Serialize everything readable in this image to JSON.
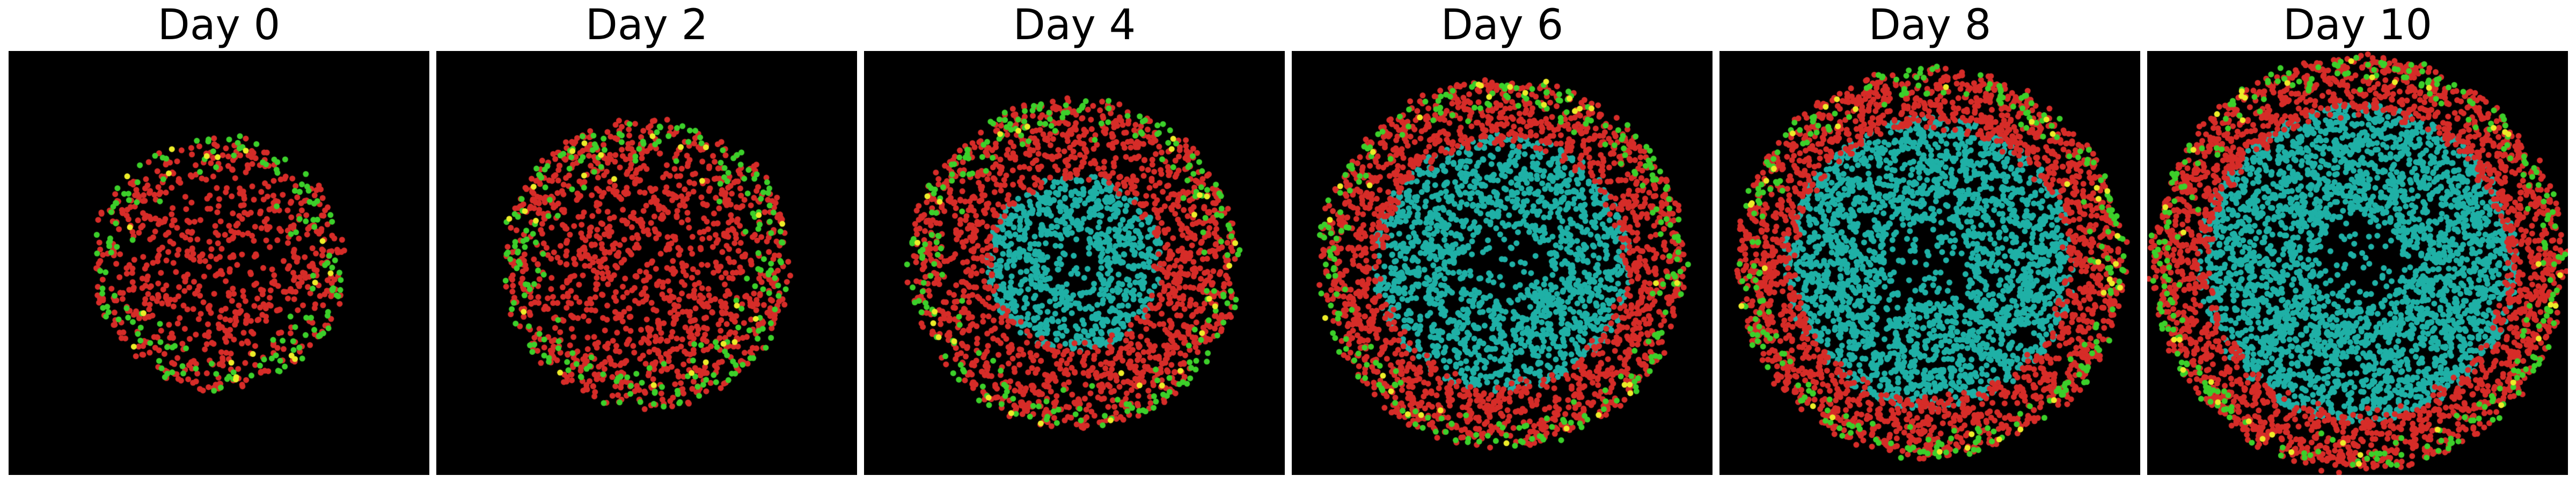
{
  "panels": [
    {
      "title": "Day 0",
      "cell_counts": {
        "necrotic": 0,
        "proliferating": 720,
        "g1": 150,
        "g2": 18
      },
      "core_fraction": 0.0,
      "radius": 0.6
    },
    {
      "title": "Day 2",
      "cell_counts": {
        "necrotic": 0,
        "proliferating": 1250,
        "g1": 220,
        "g2": 24
      },
      "core_fraction": 0.0,
      "radius": 0.69
    },
    {
      "title": "Day 4",
      "cell_counts": {
        "necrotic": 900,
        "proliferating": 1500,
        "g1": 230,
        "g2": 28
      },
      "core_fraction": 0.55,
      "radius": 0.78
    },
    {
      "title": "Day 6",
      "cell_counts": {
        "necrotic": 1700,
        "proliferating": 1700,
        "g1": 240,
        "g2": 30
      },
      "core_fraction": 0.72,
      "radius": 0.87
    },
    {
      "title": "Day 8",
      "cell_counts": {
        "necrotic": 2500,
        "proliferating": 1900,
        "g1": 250,
        "g2": 34
      },
      "core_fraction": 0.77,
      "radius": 0.92
    },
    {
      "title": "Day 10",
      "cell_counts": {
        "necrotic": 3200,
        "proliferating": 2100,
        "g1": 260,
        "g2": 36
      },
      "core_fraction": 0.79,
      "radius": 0.98
    }
  ],
  "colors": {
    "background": "#000000",
    "necrotic": "#1fb0a6",
    "proliferating": "#d62c28",
    "g1": "#3ccf2a",
    "g2": "#ecec28"
  }
}
